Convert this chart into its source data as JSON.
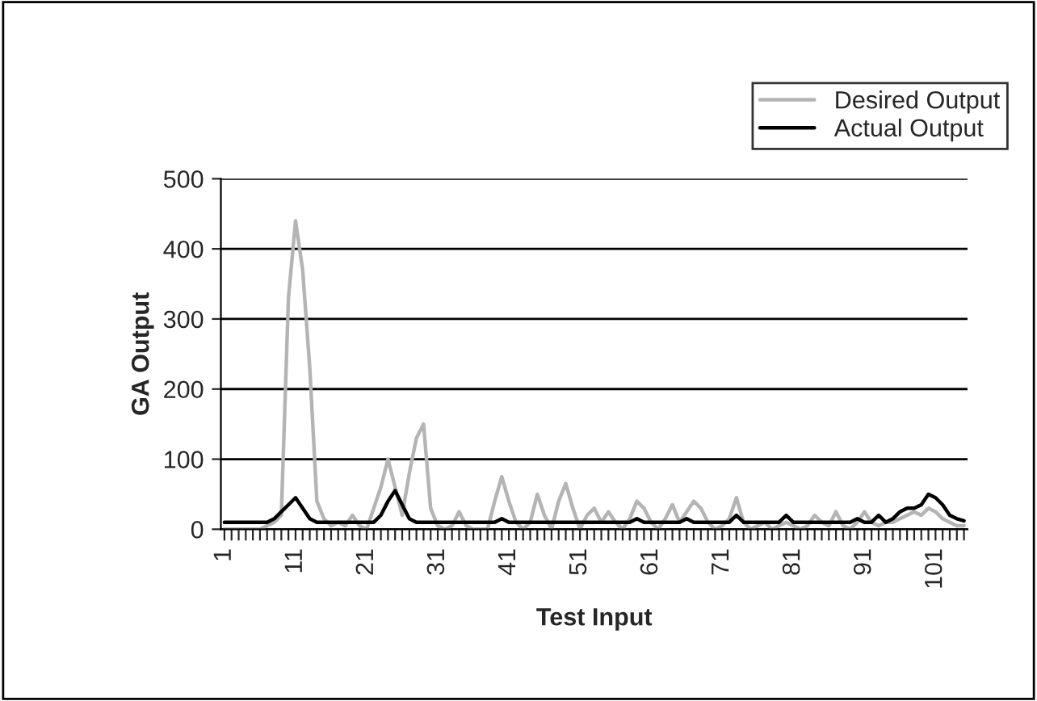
{
  "chart_data": {
    "type": "line",
    "xlabel": "Test Input",
    "ylabel": "GA Output",
    "categories": [
      "1",
      null,
      null,
      null,
      null,
      null,
      null,
      null,
      null,
      null,
      "11",
      null,
      null,
      null,
      null,
      null,
      null,
      null,
      null,
      null,
      "21",
      null,
      null,
      null,
      null,
      null,
      null,
      null,
      null,
      null,
      "31",
      null,
      null,
      null,
      null,
      null,
      null,
      null,
      null,
      null,
      "41",
      null,
      null,
      null,
      null,
      null,
      null,
      null,
      null,
      null,
      "51",
      null,
      null,
      null,
      null,
      null,
      null,
      null,
      null,
      null,
      "61",
      null,
      null,
      null,
      null,
      null,
      null,
      null,
      null,
      null,
      "71",
      null,
      null,
      null,
      null,
      null,
      null,
      null,
      null,
      null,
      "81",
      null,
      null,
      null,
      null,
      null,
      null,
      null,
      null,
      null,
      "91",
      null,
      null,
      null,
      null,
      null,
      null,
      null,
      null,
      null,
      "101",
      null,
      null,
      null,
      null
    ],
    "series": [
      {
        "name": "Desired Output",
        "color": "#b4b4b4",
        "values": [
          0,
          0,
          0,
          0,
          0,
          0,
          5,
          10,
          20,
          330,
          440,
          370,
          230,
          40,
          15,
          5,
          10,
          5,
          20,
          5,
          0,
          30,
          60,
          100,
          60,
          20,
          80,
          130,
          150,
          30,
          5,
          0,
          5,
          25,
          5,
          0,
          0,
          0,
          40,
          75,
          40,
          10,
          0,
          10,
          50,
          20,
          0,
          40,
          65,
          30,
          0,
          20,
          30,
          10,
          25,
          10,
          0,
          15,
          40,
          30,
          10,
          0,
          15,
          35,
          10,
          25,
          40,
          30,
          10,
          0,
          5,
          15,
          45,
          10,
          0,
          5,
          10,
          0,
          5,
          10,
          5,
          0,
          5,
          20,
          10,
          5,
          25,
          5,
          0,
          10,
          25,
          10,
          5,
          10,
          10,
          15,
          20,
          25,
          20,
          30,
          25,
          15,
          10,
          5,
          5
        ]
      },
      {
        "name": "Actual Output",
        "color": "#000000",
        "values": [
          10,
          10,
          10,
          10,
          10,
          10,
          10,
          15,
          25,
          35,
          45,
          30,
          15,
          10,
          10,
          10,
          10,
          10,
          10,
          10,
          10,
          10,
          20,
          40,
          55,
          35,
          15,
          10,
          10,
          10,
          10,
          10,
          10,
          10,
          10,
          10,
          10,
          10,
          10,
          15,
          10,
          10,
          10,
          10,
          10,
          10,
          10,
          10,
          10,
          10,
          10,
          10,
          10,
          10,
          10,
          10,
          10,
          10,
          15,
          10,
          10,
          10,
          10,
          10,
          10,
          15,
          10,
          10,
          10,
          10,
          10,
          10,
          20,
          10,
          10,
          10,
          10,
          10,
          10,
          20,
          10,
          10,
          10,
          10,
          10,
          10,
          10,
          10,
          10,
          15,
          10,
          10,
          20,
          10,
          15,
          25,
          30,
          30,
          35,
          50,
          45,
          35,
          20,
          15,
          12
        ]
      }
    ],
    "ylim": [
      0,
      500
    ],
    "yticks": [
      0,
      100,
      200,
      300,
      400,
      500
    ],
    "grid": "y",
    "legend": "top right",
    "marker": "none",
    "line_style": "solid"
  }
}
